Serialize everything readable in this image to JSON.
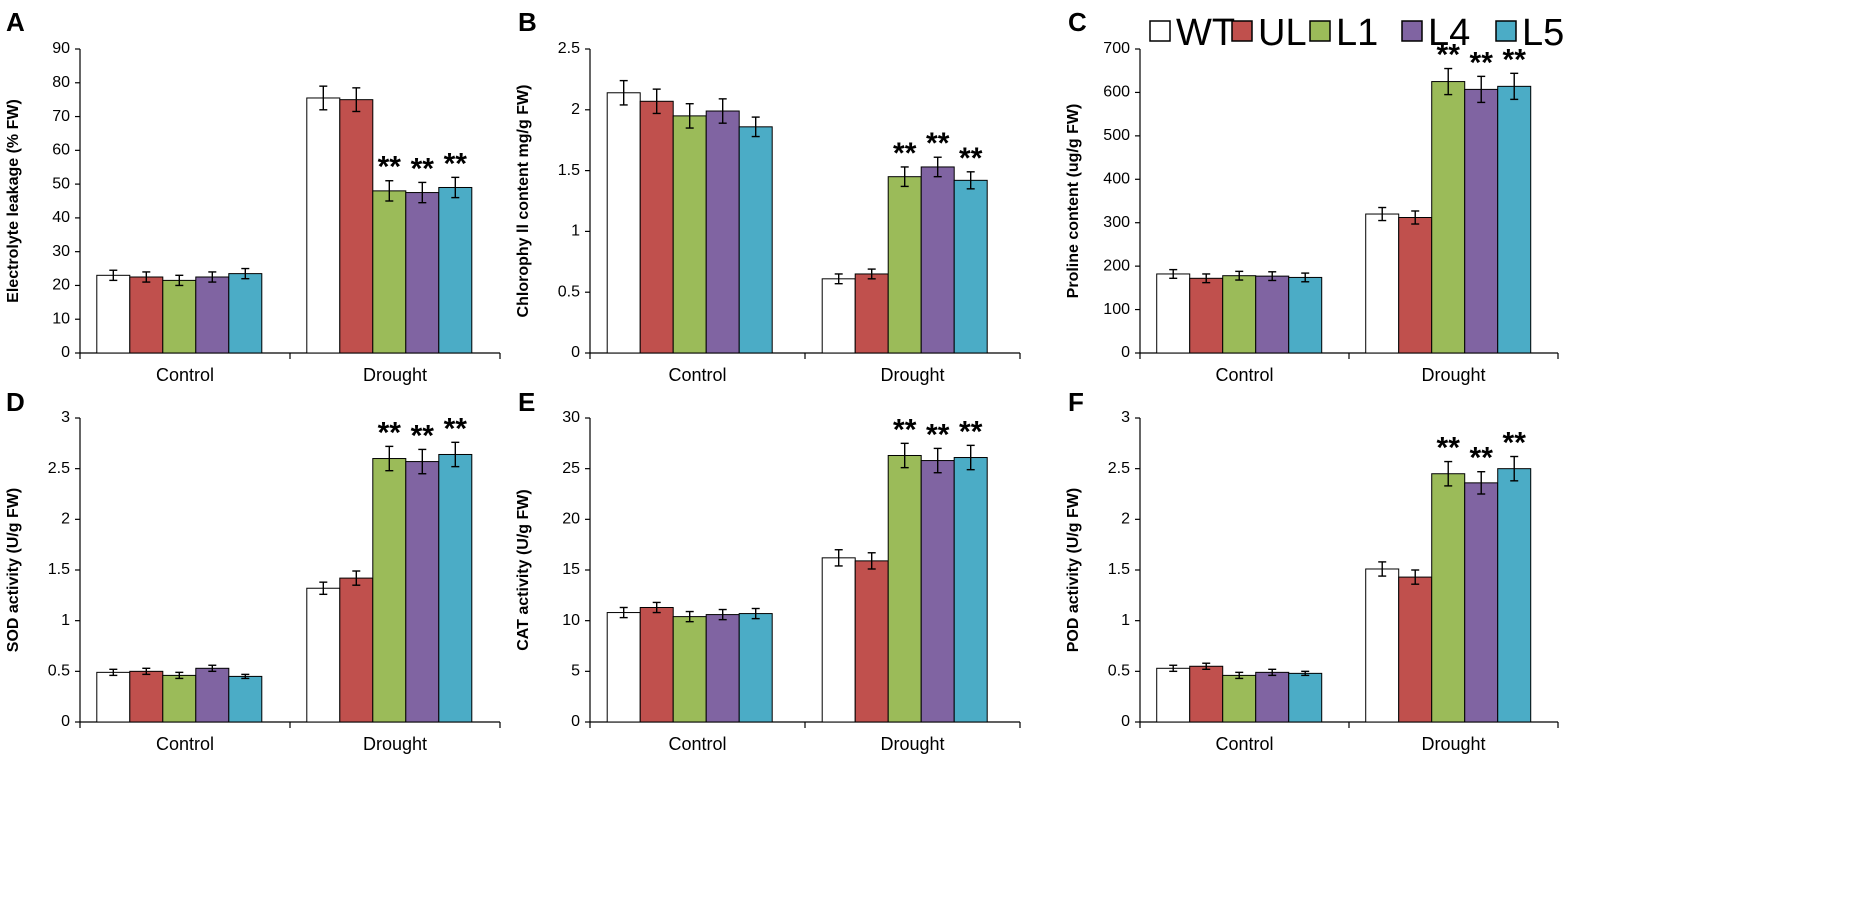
{
  "figure": {
    "series": [
      {
        "name": "WT",
        "color": "#ffffff"
      },
      {
        "name": "UL",
        "color": "#c0504d"
      },
      {
        "name": "L1",
        "color": "#9bbb59"
      },
      {
        "name": "L4",
        "color": "#8064a2"
      },
      {
        "name": "L5",
        "color": "#4bacc6"
      }
    ],
    "categories": [
      "Control",
      "Drought"
    ],
    "significance_mark": "**"
  },
  "chart_data": [
    {
      "panel": "A",
      "type": "bar",
      "ylabel": "Electrolyte leakage  (% FW)",
      "ylim": [
        0,
        90
      ],
      "yticks": [
        0,
        10,
        20,
        30,
        40,
        50,
        60,
        70,
        80,
        90
      ],
      "categories": [
        "Control",
        "Drought"
      ],
      "series": [
        {
          "name": "WT",
          "values": [
            23,
            75.5
          ],
          "errors": [
            1.5,
            3.5
          ]
        },
        {
          "name": "UL",
          "values": [
            22.5,
            75
          ],
          "errors": [
            1.5,
            3.5
          ]
        },
        {
          "name": "L1",
          "values": [
            21.5,
            48
          ],
          "errors": [
            1.5,
            3
          ]
        },
        {
          "name": "L4",
          "values": [
            22.5,
            47.5
          ],
          "errors": [
            1.5,
            3
          ]
        },
        {
          "name": "L5",
          "values": [
            23.5,
            49
          ],
          "errors": [
            1.5,
            3
          ]
        }
      ],
      "significant": [
        [
          false,
          false
        ],
        [
          false,
          false
        ],
        [
          false,
          true
        ],
        [
          false,
          true
        ],
        [
          false,
          true
        ]
      ]
    },
    {
      "panel": "B",
      "type": "bar",
      "ylabel": "Chlorophy ll content  mg/g FW)",
      "ylim": [
        0,
        2.5
      ],
      "yticks": [
        "0",
        "0.5",
        "1",
        "1.5",
        "2",
        "2.5"
      ],
      "categories": [
        "Control",
        "Drought"
      ],
      "series": [
        {
          "name": "WT",
          "values": [
            2.14,
            0.61
          ],
          "errors": [
            0.1,
            0.04
          ]
        },
        {
          "name": "UL",
          "values": [
            2.07,
            0.65
          ],
          "errors": [
            0.1,
            0.04
          ]
        },
        {
          "name": "L1",
          "values": [
            1.95,
            1.45
          ],
          "errors": [
            0.1,
            0.08
          ]
        },
        {
          "name": "L4",
          "values": [
            1.99,
            1.53
          ],
          "errors": [
            0.1,
            0.08
          ]
        },
        {
          "name": "L5",
          "values": [
            1.86,
            1.42
          ],
          "errors": [
            0.08,
            0.07
          ]
        }
      ],
      "significant": [
        [
          false,
          false
        ],
        [
          false,
          false
        ],
        [
          false,
          true
        ],
        [
          false,
          true
        ],
        [
          false,
          true
        ]
      ]
    },
    {
      "panel": "C",
      "type": "bar",
      "ylabel": "Proline content  (ug/g FW)",
      "ylim": [
        0,
        700
      ],
      "yticks": [
        0,
        100,
        200,
        300,
        400,
        500,
        600,
        700
      ],
      "categories": [
        "Control",
        "Drought"
      ],
      "series": [
        {
          "name": "WT",
          "values": [
            182,
            320
          ],
          "errors": [
            10,
            15
          ]
        },
        {
          "name": "UL",
          "values": [
            172,
            312
          ],
          "errors": [
            10,
            15
          ]
        },
        {
          "name": "L1",
          "values": [
            178,
            625
          ],
          "errors": [
            10,
            30
          ]
        },
        {
          "name": "L4",
          "values": [
            177,
            607
          ],
          "errors": [
            10,
            30
          ]
        },
        {
          "name": "L5",
          "values": [
            174,
            614
          ],
          "errors": [
            10,
            30
          ]
        }
      ],
      "significant": [
        [
          false,
          false
        ],
        [
          false,
          false
        ],
        [
          false,
          true
        ],
        [
          false,
          true
        ],
        [
          false,
          true
        ]
      ]
    },
    {
      "panel": "D",
      "type": "bar",
      "ylabel": "SOD activity  (U/g FW)",
      "ylim": [
        0,
        3
      ],
      "yticks": [
        "0",
        "0.5",
        "1",
        "1.5",
        "2",
        "2.5",
        "3"
      ],
      "categories": [
        "Control",
        "Drought"
      ],
      "series": [
        {
          "name": "WT",
          "values": [
            0.49,
            1.32
          ],
          "errors": [
            0.03,
            0.06
          ]
        },
        {
          "name": "UL",
          "values": [
            0.5,
            1.42
          ],
          "errors": [
            0.03,
            0.07
          ]
        },
        {
          "name": "L1",
          "values": [
            0.46,
            2.6
          ],
          "errors": [
            0.03,
            0.12
          ]
        },
        {
          "name": "L4",
          "values": [
            0.53,
            2.57
          ],
          "errors": [
            0.03,
            0.12
          ]
        },
        {
          "name": "L5",
          "values": [
            0.45,
            2.64
          ],
          "errors": [
            0.02,
            0.12
          ]
        }
      ],
      "significant": [
        [
          false,
          false
        ],
        [
          false,
          false
        ],
        [
          false,
          true
        ],
        [
          false,
          true
        ],
        [
          false,
          true
        ]
      ]
    },
    {
      "panel": "E",
      "type": "bar",
      "ylabel": "CAT activity  (U/g FW)",
      "ylim": [
        0,
        30
      ],
      "yticks": [
        0,
        5,
        10,
        15,
        20,
        25,
        30
      ],
      "categories": [
        "Control",
        "Drought"
      ],
      "series": [
        {
          "name": "WT",
          "values": [
            10.8,
            16.2
          ],
          "errors": [
            0.5,
            0.8
          ]
        },
        {
          "name": "UL",
          "values": [
            11.3,
            15.9
          ],
          "errors": [
            0.5,
            0.8
          ]
        },
        {
          "name": "L1",
          "values": [
            10.4,
            26.3
          ],
          "errors": [
            0.5,
            1.2
          ]
        },
        {
          "name": "L4",
          "values": [
            10.6,
            25.8
          ],
          "errors": [
            0.5,
            1.2
          ]
        },
        {
          "name": "L5",
          "values": [
            10.7,
            26.1
          ],
          "errors": [
            0.5,
            1.2
          ]
        }
      ],
      "significant": [
        [
          false,
          false
        ],
        [
          false,
          false
        ],
        [
          false,
          true
        ],
        [
          false,
          true
        ],
        [
          false,
          true
        ]
      ]
    },
    {
      "panel": "F",
      "type": "bar",
      "ylabel": "POD activity  (U/g FW)",
      "ylim": [
        0,
        3
      ],
      "yticks": [
        "0",
        "0.5",
        "1",
        "1.5",
        "2",
        "2.5",
        "3"
      ],
      "categories": [
        "Control",
        "Drought"
      ],
      "series": [
        {
          "name": "WT",
          "values": [
            0.53,
            1.51
          ],
          "errors": [
            0.03,
            0.07
          ]
        },
        {
          "name": "UL",
          "values": [
            0.55,
            1.43
          ],
          "errors": [
            0.03,
            0.07
          ]
        },
        {
          "name": "L1",
          "values": [
            0.46,
            2.45
          ],
          "errors": [
            0.03,
            0.12
          ]
        },
        {
          "name": "L4",
          "values": [
            0.49,
            2.36
          ],
          "errors": [
            0.03,
            0.11
          ]
        },
        {
          "name": "L5",
          "values": [
            0.48,
            2.5
          ],
          "errors": [
            0.02,
            0.12
          ]
        }
      ],
      "significant": [
        [
          false,
          false
        ],
        [
          false,
          false
        ],
        [
          false,
          true
        ],
        [
          false,
          true
        ],
        [
          false,
          true
        ]
      ]
    }
  ]
}
